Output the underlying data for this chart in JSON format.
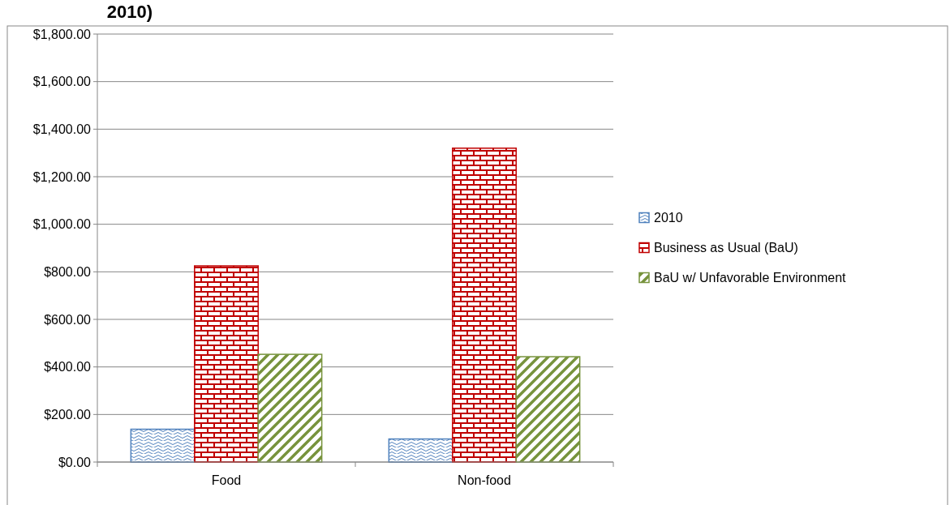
{
  "chart_data": {
    "type": "bar",
    "title": "2010)",
    "categories": [
      "Food",
      "Non-food"
    ],
    "series": [
      {
        "name": "2010",
        "color": "#4f81bd",
        "values": [
          138,
          97
        ]
      },
      {
        "name": "Business as Usual (BaU)",
        "color": "#c00000",
        "values": [
          825,
          1320
        ]
      },
      {
        "name": "BaU w/ Unfavorable Environment",
        "color": "#77933c",
        "values": [
          453,
          443
        ]
      }
    ],
    "ylim": [
      0,
      1800
    ],
    "yticks": [
      {
        "value": 0,
        "label": "$0.00"
      },
      {
        "value": 200,
        "label": "$200.00"
      },
      {
        "value": 400,
        "label": "$400.00"
      },
      {
        "value": 600,
        "label": "$600.00"
      },
      {
        "value": 800,
        "label": "$800.00"
      },
      {
        "value": 1000,
        "label": "$1,000.00"
      },
      {
        "value": 1200,
        "label": "$1,200.00"
      },
      {
        "value": 1400,
        "label": "$1,400.00"
      },
      {
        "value": 1600,
        "label": "$1,600.00"
      },
      {
        "value": 1800,
        "label": "$1,800.00"
      }
    ],
    "grid": "y",
    "legend": "right"
  }
}
